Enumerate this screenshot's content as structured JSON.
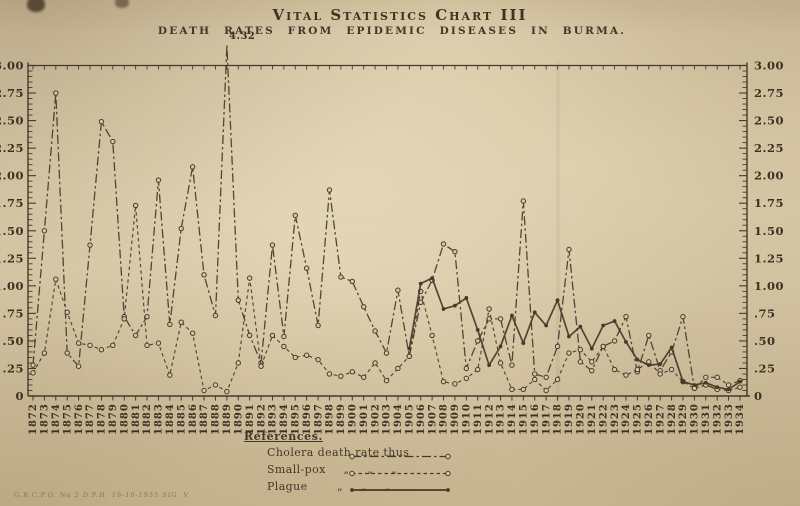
{
  "page": {
    "title": "Vital Statistics Chart III",
    "subtitle": "DEATH RATES FROM EPIDEMIC DISEASES IN BURMA.",
    "peak_annotation": "4.32",
    "fine_print": "G.B.C.P.O. No 2   D.P.H.   19-10-1935   SIG. V"
  },
  "legend": {
    "heading": "References.",
    "rows": [
      {
        "series": "cholera",
        "label": "Cholera death rate thus"
      },
      {
        "series": "smallpox",
        "label": "Small-pox   „   „   „"
      },
      {
        "series": "plague",
        "label": "Plague     „   „   „"
      }
    ]
  },
  "chart_data": {
    "type": "line",
    "title": "Vital Statistics Chart III",
    "subtitle": "Death rates from epidemic diseases in Burma",
    "x": [
      1872,
      1873,
      1874,
      1875,
      1876,
      1877,
      1878,
      1879,
      1880,
      1881,
      1882,
      1883,
      1884,
      1885,
      1886,
      1887,
      1888,
      1889,
      1890,
      1891,
      1892,
      1893,
      1894,
      1895,
      1896,
      1897,
      1898,
      1899,
      1900,
      1901,
      1902,
      1903,
      1904,
      1905,
      1906,
      1907,
      1908,
      1909,
      1910,
      1911,
      1912,
      1913,
      1914,
      1915,
      1916,
      1917,
      1918,
      1919,
      1920,
      1921,
      1922,
      1923,
      1924,
      1925,
      1926,
      1927,
      1928,
      1929,
      1930,
      1931,
      1932,
      1933,
      1934
    ],
    "ylim": [
      0,
      3.0
    ],
    "y_tick_labels": [
      "3.00",
      "2.75",
      "2.50",
      "2.25",
      "2.00",
      "1.75",
      "1.50",
      "1.25",
      "1.00",
      ".75",
      ".50",
      ".25",
      "0"
    ],
    "y_tick_values": [
      3.0,
      2.75,
      2.5,
      2.25,
      2.0,
      1.75,
      1.5,
      1.25,
      1.0,
      0.75,
      0.5,
      0.25,
      0
    ],
    "y_minor_tick_interval": 0.05,
    "grid": false,
    "legend_position": "bottom-left",
    "off_scale_note": {
      "series": "Cholera death rate",
      "year": 1889,
      "value": 4.32,
      "label": "4.32"
    },
    "series": [
      {
        "name": "Cholera death rate",
        "style": "dash-dot",
        "marker": "open-circle",
        "values": [
          0.28,
          1.5,
          2.75,
          0.39,
          0.27,
          1.37,
          2.49,
          2.31,
          0.72,
          0.55,
          0.72,
          1.96,
          0.65,
          1.52,
          2.08,
          1.1,
          0.73,
          4.32,
          0.87,
          0.55,
          0.3,
          1.37,
          0.54,
          1.64,
          1.16,
          0.64,
          1.87,
          1.08,
          1.04,
          0.81,
          0.59,
          0.39,
          0.96,
          0.36,
          0.85,
          1.05,
          1.38,
          1.31,
          0.25,
          0.5,
          0.7,
          0.7,
          0.28,
          1.77,
          0.2,
          0.17,
          0.45,
          1.33,
          0.31,
          0.23,
          0.45,
          0.5,
          0.72,
          0.22,
          0.55,
          0.23,
          0.4,
          0.72,
          0.07,
          0.1,
          0.06,
          0.05,
          0.08
        ]
      },
      {
        "name": "Small-pox death rate",
        "style": "dashed",
        "marker": "open-circle",
        "values": [
          0.21,
          0.39,
          1.06,
          0.76,
          0.48,
          0.46,
          0.42,
          0.46,
          0.7,
          1.73,
          0.46,
          0.48,
          0.19,
          0.67,
          0.57,
          0.05,
          0.1,
          0.04,
          0.3,
          1.07,
          0.27,
          0.55,
          0.45,
          0.35,
          0.37,
          0.33,
          0.2,
          0.18,
          0.22,
          0.17,
          0.3,
          0.14,
          0.25,
          0.36,
          0.95,
          0.55,
          0.13,
          0.11,
          0.16,
          0.24,
          0.79,
          0.3,
          0.06,
          0.06,
          0.15,
          0.05,
          0.15,
          0.39,
          0.42,
          0.31,
          0.45,
          0.24,
          0.19,
          0.24,
          0.31,
          0.2,
          0.24,
          0.13,
          0.07,
          0.17,
          0.17,
          0.1,
          0.14
        ]
      },
      {
        "name": "Plague death rate",
        "style": "solid",
        "marker": "filled-circle",
        "values": [
          null,
          null,
          null,
          null,
          null,
          null,
          null,
          null,
          null,
          null,
          null,
          null,
          null,
          null,
          null,
          null,
          null,
          null,
          null,
          null,
          null,
          null,
          null,
          null,
          null,
          null,
          null,
          null,
          null,
          null,
          null,
          null,
          null,
          0.43,
          1.02,
          1.07,
          0.79,
          0.82,
          0.89,
          0.6,
          0.28,
          0.45,
          0.73,
          0.48,
          0.76,
          0.64,
          0.87,
          0.54,
          0.63,
          0.43,
          0.64,
          0.68,
          0.49,
          0.33,
          0.28,
          0.29,
          0.44,
          0.13,
          0.1,
          0.12,
          0.08,
          0.06,
          0.13
        ]
      }
    ],
    "ink_color": "#46392a",
    "paper_color": "#d7c7a5"
  }
}
